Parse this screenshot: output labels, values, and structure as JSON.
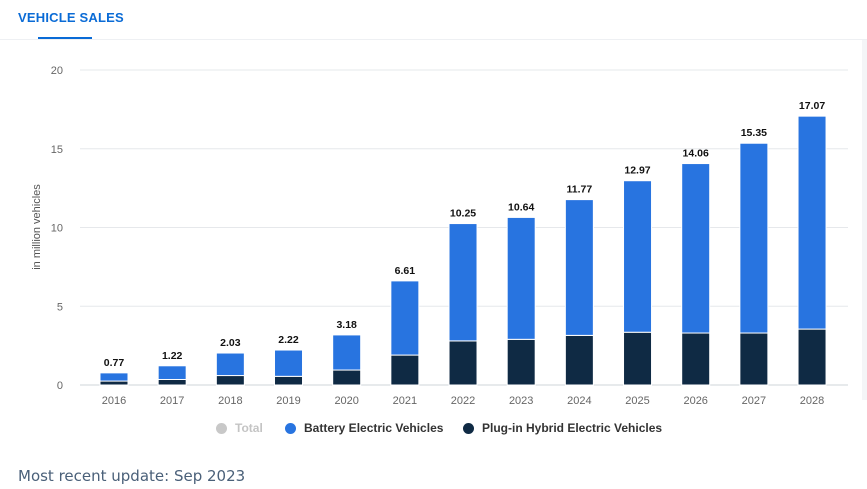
{
  "header": {
    "tab_label": "VEHICLE SALES"
  },
  "chart_data": {
    "type": "bar",
    "stacked": true,
    "title": "",
    "xlabel": "",
    "ylabel": "in million vehicles",
    "ylim": [
      0,
      20
    ],
    "yticks": [
      0,
      5,
      10,
      15,
      20
    ],
    "grid": true,
    "legend_position": "bottom-center",
    "categories": [
      "2016",
      "2017",
      "2018",
      "2019",
      "2020",
      "2021",
      "2022",
      "2023",
      "2024",
      "2025",
      "2026",
      "2027",
      "2028"
    ],
    "totals": [
      0.77,
      1.22,
      2.03,
      2.22,
      3.18,
      6.61,
      10.25,
      10.64,
      11.77,
      12.97,
      14.06,
      15.35,
      17.07
    ],
    "series": [
      {
        "name": "Plug-in Hybrid Electric Vehicles",
        "color": "#0f2a44",
        "values": [
          0.25,
          0.35,
          0.6,
          0.55,
          0.95,
          1.9,
          2.8,
          2.9,
          3.15,
          3.35,
          3.3,
          3.3,
          3.55
        ]
      },
      {
        "name": "Battery Electric Vehicles",
        "color": "#2874e0",
        "values": [
          0.52,
          0.87,
          1.43,
          1.67,
          2.23,
          4.71,
          7.45,
          7.74,
          8.62,
          9.62,
          10.76,
          12.05,
          13.52
        ]
      }
    ],
    "legend": [
      {
        "name": "Total",
        "color": "#c8c8c8",
        "inactive": true
      },
      {
        "name": "Battery Electric Vehicles",
        "color": "#2874e0",
        "inactive": false
      },
      {
        "name": "Plug-in Hybrid Electric Vehicles",
        "color": "#0f2a44",
        "inactive": false
      }
    ]
  },
  "footer": {
    "update_text": "Most recent update: Sep 2023"
  }
}
